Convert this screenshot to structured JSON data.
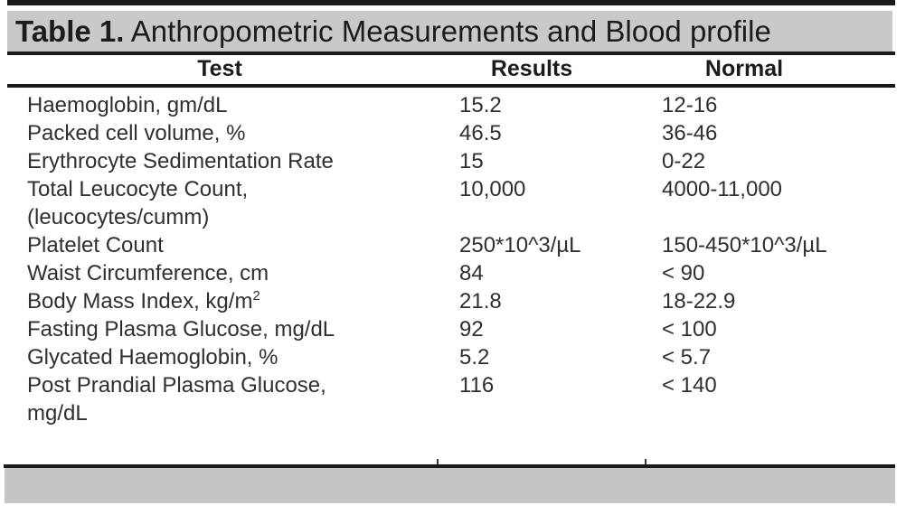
{
  "table": {
    "title": {
      "label": "Table 1.",
      "text": " Anthropometric Measurements and Blood profile"
    },
    "columns": [
      "Test",
      "Results",
      "Normal"
    ],
    "rows": [
      {
        "test": "Haemoglobin, gm/dL",
        "result": "15.2",
        "normal": "12-16"
      },
      {
        "test": "Packed cell volume, %",
        "result": "46.5",
        "normal": "36-46"
      },
      {
        "test": "Erythrocyte Sedimentation Rate",
        "result": "15",
        "normal": "0-22"
      },
      {
        "test": "Total Leucocyte Count,",
        "test_line2": "(leucocytes/cumm)",
        "result": "10,000",
        "normal": "4000-11,000"
      },
      {
        "test": "Platelet Count",
        "result": "250*10^3/µL",
        "normal": "150-450*10^3/µL"
      },
      {
        "test": "Waist Circumference, cm",
        "result": "84",
        "normal": "< 90"
      },
      {
        "test": "Body Mass Index, kg/m",
        "test_sup": "2",
        "result": "21.8",
        "normal": "18-22.9"
      },
      {
        "test": "Fasting Plasma Glucose, mg/dL",
        "result": "92",
        "normal": "< 100"
      },
      {
        "test": "Glycated Haemoglobin, %",
        "result": "5.2",
        "normal": "< 5.7"
      },
      {
        "test": "Post Prandial Plasma Glucose,",
        "test_line2": "mg/dL",
        "result": "116",
        "normal": "< 140"
      }
    ],
    "colors": {
      "title_bar_bg": "#c9c9c9",
      "footer_bar_bg": "#c5c5c5",
      "rule": "#1a1a1a",
      "text": "#2f2f2f"
    }
  },
  "chart_data": {
    "type": "table",
    "title": "Table 1. Anthropometric Measurements and Blood profile",
    "columns": [
      "Test",
      "Results",
      "Normal"
    ],
    "rows": [
      [
        "Haemoglobin, gm/dL",
        "15.2",
        "12-16"
      ],
      [
        "Packed cell volume, %",
        "46.5",
        "36-46"
      ],
      [
        "Erythrocyte Sedimentation Rate",
        "15",
        "0-22"
      ],
      [
        "Total Leucocyte Count, (leucocytes/cumm)",
        "10,000",
        "4000-11,000"
      ],
      [
        "Platelet Count",
        "250*10^3/µL",
        "150-450*10^3/µL"
      ],
      [
        "Waist Circumference, cm",
        "84",
        "< 90"
      ],
      [
        "Body Mass Index, kg/m2",
        "21.8",
        "18-22.9"
      ],
      [
        "Fasting Plasma Glucose, mg/dL",
        "92",
        "< 100"
      ],
      [
        "Glycated Haemoglobin, %",
        "5.2",
        "< 5.7"
      ],
      [
        "Post Prandial Plasma Glucose, mg/dL",
        "116",
        "< 140"
      ]
    ]
  }
}
